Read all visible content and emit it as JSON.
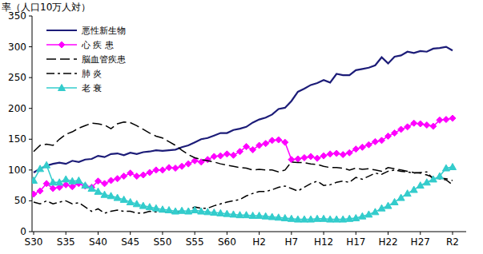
{
  "chart_data": {
    "type": "line",
    "y_label": "率（人口10万人対）",
    "categories": [
      "S30",
      null,
      null,
      null,
      null,
      "S35",
      null,
      null,
      null,
      null,
      "S40",
      null,
      null,
      null,
      null,
      "S45",
      null,
      null,
      null,
      null,
      "S50",
      null,
      null,
      null,
      null,
      "S55",
      null,
      null,
      null,
      null,
      "S60",
      null,
      null,
      null,
      null,
      "H2",
      null,
      null,
      null,
      null,
      "H7",
      null,
      null,
      null,
      null,
      "H12",
      null,
      null,
      null,
      null,
      "H17",
      null,
      null,
      null,
      null,
      "H22",
      null,
      null,
      null,
      null,
      "H27",
      null,
      null,
      null,
      null,
      "R2"
    ],
    "ylim": [
      0,
      350
    ],
    "yticks": [
      0,
      50,
      100,
      150,
      200,
      250,
      300,
      350
    ],
    "grid": false,
    "legend": "upper left",
    "series": [
      {
        "name": "悪性新生物",
        "color": "#1c1c78",
        "line_style": "solid",
        "marker": "none",
        "values": [
          96,
          102,
          107,
          110,
          112,
          110,
          115,
          113,
          117,
          118,
          123,
          121,
          126,
          127,
          124,
          128,
          126,
          129,
          130,
          132,
          131,
          132,
          133,
          137,
          140,
          145,
          150,
          152,
          156,
          160,
          160,
          165,
          167,
          170,
          177,
          182,
          185,
          190,
          199,
          201,
          212,
          227,
          232,
          238,
          241,
          246,
          242,
          256,
          254,
          254,
          262,
          264,
          266,
          270,
          283,
          273,
          284,
          286,
          292,
          290,
          293,
          292,
          297,
          298,
          300,
          294
        ]
      },
      {
        "name": "心 疾 患",
        "color": "#ff00ff",
        "line_style": "solid",
        "marker": "diamond",
        "values": [
          61,
          66,
          78,
          70,
          72,
          76,
          73,
          78,
          74,
          72,
          82,
          78,
          83,
          86,
          90,
          95,
          90,
          92,
          96,
          100,
          100,
          104,
          103,
          106,
          110,
          115,
          113,
          117,
          122,
          123,
          126,
          124,
          130,
          138,
          133,
          140,
          143,
          148,
          149,
          145,
          117,
          118,
          120,
          122,
          119,
          123,
          126,
          127,
          125,
          128,
          134,
          137,
          141,
          146,
          148,
          155,
          160,
          166,
          170,
          176,
          175,
          173,
          171,
          181,
          182,
          184
        ]
      },
      {
        "name": "脳血管疾患",
        "color": "#000000",
        "line_style": "dashed",
        "marker": "none",
        "values": [
          130,
          140,
          142,
          140,
          150,
          158,
          162,
          168,
          172,
          176,
          175,
          173,
          167,
          175,
          178,
          177,
          172,
          166,
          160,
          155,
          152,
          146,
          140,
          132,
          125,
          120,
          117,
          115,
          113,
          110,
          108,
          106,
          104,
          103,
          100,
          101,
          100,
          100,
          97,
          100,
          113,
          112,
          112,
          110,
          109,
          106,
          104,
          104,
          103,
          100,
          103,
          101,
          102,
          100,
          98,
          104,
          102,
          100,
          98,
          96,
          95,
          92,
          88,
          87,
          86,
          83
        ]
      },
      {
        "name": "肺 炎",
        "color": "#000000",
        "line_style": "dashdot",
        "marker": "none",
        "values": [
          48,
          45,
          50,
          45,
          48,
          50,
          45,
          47,
          40,
          33,
          37,
          30,
          33,
          35,
          33,
          33,
          30,
          30,
          33,
          32,
          33,
          30,
          32,
          33,
          35,
          40,
          38,
          38,
          42,
          45,
          48,
          50,
          52,
          58,
          62,
          65,
          65,
          68,
          72,
          74,
          70,
          66,
          72,
          78,
          82,
          75,
          76,
          80,
          82,
          80,
          88,
          85,
          90,
          95,
          93,
          98,
          100,
          98,
          97,
          95,
          96,
          97,
          85,
          86,
          84,
          76
        ]
      },
      {
        "name": "老 衰",
        "color": "#33cccc",
        "line_style": "solid",
        "marker": "triangle",
        "values": [
          83,
          102,
          108,
          80,
          80,
          85,
          82,
          83,
          75,
          70,
          65,
          60,
          58,
          55,
          52,
          48,
          45,
          42,
          40,
          38,
          36,
          35,
          33,
          34,
          33,
          35,
          33,
          32,
          31,
          30,
          29,
          28,
          27,
          27,
          26,
          26,
          25,
          24,
          23,
          22,
          21,
          20,
          20,
          20,
          21,
          21,
          20,
          20,
          20,
          21,
          22,
          25,
          28,
          32,
          38,
          42,
          48,
          55,
          62,
          68,
          75,
          80,
          85,
          90,
          103,
          105
        ]
      }
    ]
  }
}
